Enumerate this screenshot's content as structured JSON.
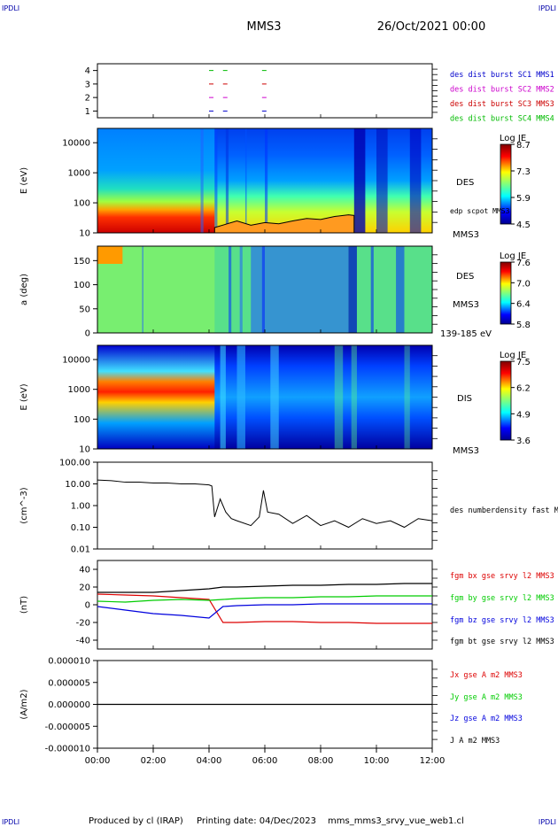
{
  "header": {
    "corner_tl": "IPDLI",
    "corner_tr": "IPDLI",
    "corner_bl": "IPDLI",
    "corner_br": "IPDLI",
    "title": "MMS3",
    "date": "26/Oct/2021 00:00"
  },
  "footer": {
    "produced": "Produced by cl (IRAP)",
    "printing": "Printing date: 04/Dec/2023",
    "file": "mms_mms3_srvy_vue_web1.cl"
  },
  "chart_data": [
    {
      "type": "scatter",
      "id": "burst",
      "ylim": [
        0.5,
        4.5
      ],
      "yticks": [
        "1",
        "2",
        "3",
        "4"
      ],
      "legend": [
        {
          "label": "des dist burst SC1 MMS1",
          "color": "#0000cc"
        },
        {
          "label": "des dist burst SC2 MMS2",
          "color": "#cc00cc"
        },
        {
          "label": "des dist burst SC3 MMS3",
          "color": "#cc0000"
        },
        {
          "label": "des dist burst SC4 MMS4",
          "color": "#00bb00"
        }
      ],
      "markers": [
        {
          "sc": 4,
          "t": [
            4.0,
            4.5,
            5.9
          ]
        },
        {
          "sc": 3,
          "t": [
            4.0,
            4.5,
            5.9
          ]
        },
        {
          "sc": 2,
          "t": [
            4.0,
            4.5,
            5.9
          ]
        },
        {
          "sc": 1,
          "t": [
            4.0,
            4.5,
            5.9
          ]
        }
      ]
    },
    {
      "type": "heatmap",
      "id": "des_energy",
      "ylabel": "E (eV)",
      "yscale": "log",
      "ylim": [
        10,
        30000
      ],
      "yticks": [
        "10",
        "100",
        "1000",
        "10000"
      ],
      "right_labels": {
        "instrument": "DES",
        "spacecraft": "MMS3",
        "overlay": "edp scpot MMS3"
      },
      "colorbar": {
        "title": "Log JE",
        "ticks": [
          "8.7",
          "7.3",
          "5.9",
          "4.5"
        ]
      },
      "overlay_scpot": {
        "t": [
          4.2,
          5.0,
          5.5,
          6.0,
          6.5,
          7.0,
          7.5,
          8.0,
          8.5,
          9.0,
          9.2
        ],
        "E": [
          15,
          25,
          18,
          22,
          20,
          25,
          30,
          28,
          35,
          40,
          38
        ]
      }
    },
    {
      "type": "heatmap",
      "id": "des_pitch",
      "ylabel": "a (deg)",
      "ylim": [
        0,
        180
      ],
      "yticks": [
        "0",
        "50",
        "100",
        "150"
      ],
      "right_labels": {
        "instrument": "DES",
        "spacecraft": "MMS3",
        "range": "139-185 eV"
      },
      "colorbar": {
        "title": "Log JE",
        "ticks": [
          "7.6",
          "7.0",
          "6.4",
          "5.8"
        ]
      }
    },
    {
      "type": "heatmap",
      "id": "dis_energy",
      "ylabel": "E (eV)",
      "yscale": "log",
      "ylim": [
        10,
        30000
      ],
      "yticks": [
        "10",
        "100",
        "1000",
        "10000"
      ],
      "right_labels": {
        "instrument": "DIS",
        "spacecraft": "MMS3"
      },
      "colorbar": {
        "title": "Log JE",
        "ticks": [
          "7.5",
          "6.2",
          "4.9",
          "3.6"
        ]
      }
    },
    {
      "type": "line",
      "id": "density",
      "ylabel": "(cm^-3)",
      "yscale": "log",
      "ylim": [
        0.01,
        100
      ],
      "yticks": [
        "0.01",
        "0.10",
        "1.00",
        "10.00",
        "100.00"
      ],
      "legend": [
        {
          "label": "des numberdensity fast M",
          "color": "#000000"
        }
      ],
      "series": [
        {
          "t": [
            0.0,
            0.5,
            1.0,
            1.5,
            2.0,
            2.5,
            3.0,
            3.5,
            4.0,
            4.1,
            4.2,
            4.4,
            4.6,
            4.8,
            5.0,
            5.5,
            5.8,
            5.95,
            6.1,
            6.5,
            7.0,
            7.5,
            8.0,
            8.5,
            9.0,
            9.5,
            10.0,
            10.5,
            11.0,
            11.5,
            12.0
          ],
          "n": [
            15,
            14,
            12,
            12,
            11,
            11,
            10,
            10,
            9,
            8,
            0.3,
            2.0,
            0.5,
            0.25,
            0.2,
            0.12,
            0.3,
            5.0,
            0.5,
            0.4,
            0.15,
            0.35,
            0.12,
            0.2,
            0.1,
            0.25,
            0.15,
            0.2,
            0.1,
            0.25,
            0.2
          ]
        }
      ]
    },
    {
      "type": "line",
      "id": "fgm",
      "ylabel": "(nT)",
      "ylim": [
        -50,
        50
      ],
      "yticks": [
        "-40",
        "-20",
        "0",
        "20",
        "40"
      ],
      "legend": [
        {
          "label": "fgm bx gse srvy l2 MMS3",
          "color": "#dd0000"
        },
        {
          "label": "fgm by gse srvy l2 MMS3",
          "color": "#00cc00"
        },
        {
          "label": "fgm bz gse srvy l2 MMS3",
          "color": "#0000dd"
        },
        {
          "label": "fgm bt gse srvy l2 MMS3",
          "color": "#000000"
        }
      ],
      "series": [
        {
          "t": [
            0,
            1,
            2,
            3,
            4,
            4.5,
            5,
            6,
            7,
            8,
            9,
            10,
            11,
            12
          ],
          "v": [
            12,
            11,
            10,
            8,
            6,
            -20,
            -20,
            -19,
            -19,
            -20,
            -20,
            -21,
            -21,
            -21
          ]
        },
        {
          "t": [
            0,
            1,
            2,
            3,
            4,
            4.5,
            5,
            6,
            7,
            8,
            9,
            10,
            11,
            12
          ],
          "v": [
            4,
            3,
            5,
            6,
            5,
            6,
            7,
            8,
            8,
            9,
            9,
            10,
            10,
            10
          ]
        },
        {
          "t": [
            0,
            1,
            2,
            3,
            4,
            4.5,
            5,
            6,
            7,
            8,
            9,
            10,
            11,
            12
          ],
          "v": [
            -2,
            -6,
            -10,
            -12,
            -15,
            -2,
            -1,
            0,
            0,
            1,
            1,
            1,
            1,
            1
          ]
        },
        {
          "t": [
            0,
            1,
            2,
            3,
            4,
            4.5,
            5,
            6,
            7,
            8,
            9,
            10,
            11,
            12
          ],
          "v": [
            14,
            14,
            14,
            16,
            18,
            20,
            20,
            21,
            22,
            22,
            23,
            23,
            24,
            24
          ]
        }
      ]
    },
    {
      "type": "line",
      "id": "current",
      "ylabel": "(A/m2)",
      "ylim": [
        -1e-05,
        1e-05
      ],
      "yticks": [
        "-0.000010",
        "-0.000005",
        "0.000000",
        "0.000005",
        "0.000010"
      ],
      "legend": [
        {
          "label": "Jx gse A m2 MMS3",
          "color": "#dd0000"
        },
        {
          "label": "Jy gse A m2 MMS3",
          "color": "#00cc00"
        },
        {
          "label": "Jz gse A m2 MMS3",
          "color": "#0000dd"
        },
        {
          "label": "J A m2 MMS3",
          "color": "#000000"
        }
      ],
      "series": [
        {
          "t": [
            0,
            12
          ],
          "v": [
            0,
            0
          ]
        }
      ]
    }
  ],
  "xaxis": {
    "ticks": [
      "00:00",
      "02:00",
      "04:00",
      "06:00",
      "08:00",
      "10:00",
      "12:00"
    ],
    "range_hours": [
      0,
      12
    ]
  }
}
